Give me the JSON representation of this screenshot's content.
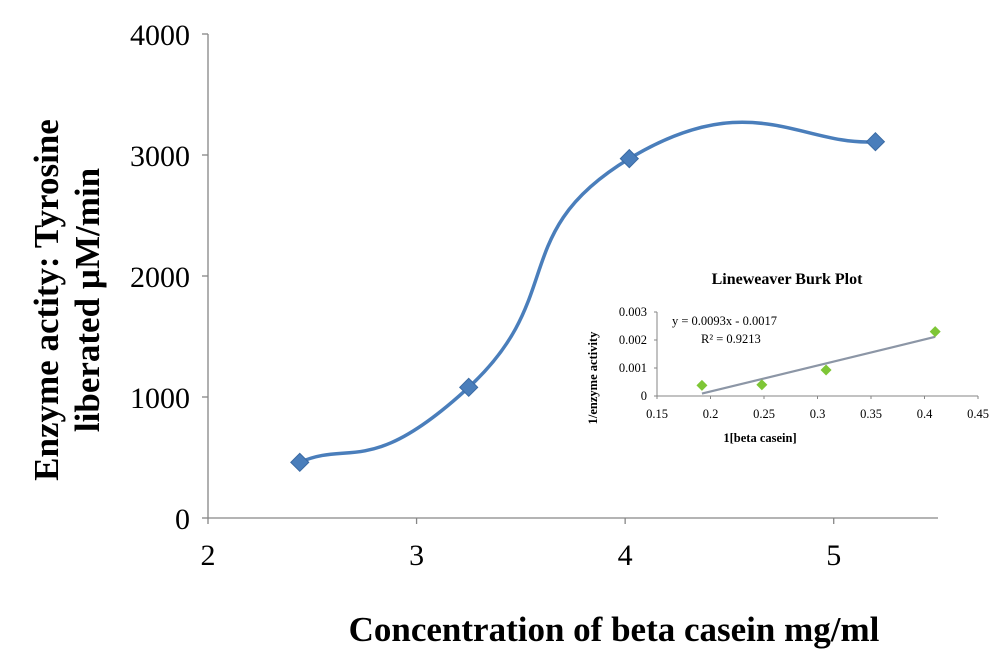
{
  "chart_data": [
    {
      "type": "line",
      "smooth": true,
      "title": "",
      "xlabel": "Concentration of beta casein mg/ml",
      "ylabel_lines": [
        "Enzyme  actity: Tyrosine",
        "liberated µM/min"
      ],
      "xlim": [
        2,
        5.5
      ],
      "ylim": [
        0,
        4000
      ],
      "xticks": [
        "2",
        "3",
        "4",
        "5"
      ],
      "yticks": [
        "0",
        "1000",
        "2000",
        "3000",
        "4000"
      ],
      "grid": false,
      "legend": "none",
      "series": [
        {
          "color": "#4a7ebb",
          "marker": "diamond",
          "x": [
            2.44,
            3.25,
            4.02,
            5.2
          ],
          "y": [
            460,
            1080,
            2970,
            3110
          ]
        }
      ]
    },
    {
      "type": "scatter",
      "title": "Lineweaver  Burk Plot",
      "xlabel": "1[beta casein]",
      "ylabel": "1/enzyme activity",
      "xlim": [
        0.15,
        0.45
      ],
      "ylim": [
        0,
        0.003
      ],
      "xticks": [
        "0.15",
        "0.2",
        "0.25",
        "0.3",
        "0.35",
        "0.4",
        "0.45"
      ],
      "yticks": [
        "0",
        "0.001",
        "0.002",
        "0.003"
      ],
      "grid": false,
      "legend": "none",
      "series": [
        {
          "color": "#7ec636",
          "marker": "diamond",
          "x": [
            0.192,
            0.248,
            0.308,
            0.41
          ],
          "y": [
            0.00038,
            0.0004,
            0.00093,
            0.0023
          ]
        }
      ],
      "trendline": {
        "color": "#8c96a6",
        "slope": 0.0093,
        "intercept": -0.0017,
        "x_range": [
          0.192,
          0.41
        ],
        "equation": "y = 0.0093x - 0.0017",
        "r2": "R² = 0.9213"
      }
    }
  ]
}
